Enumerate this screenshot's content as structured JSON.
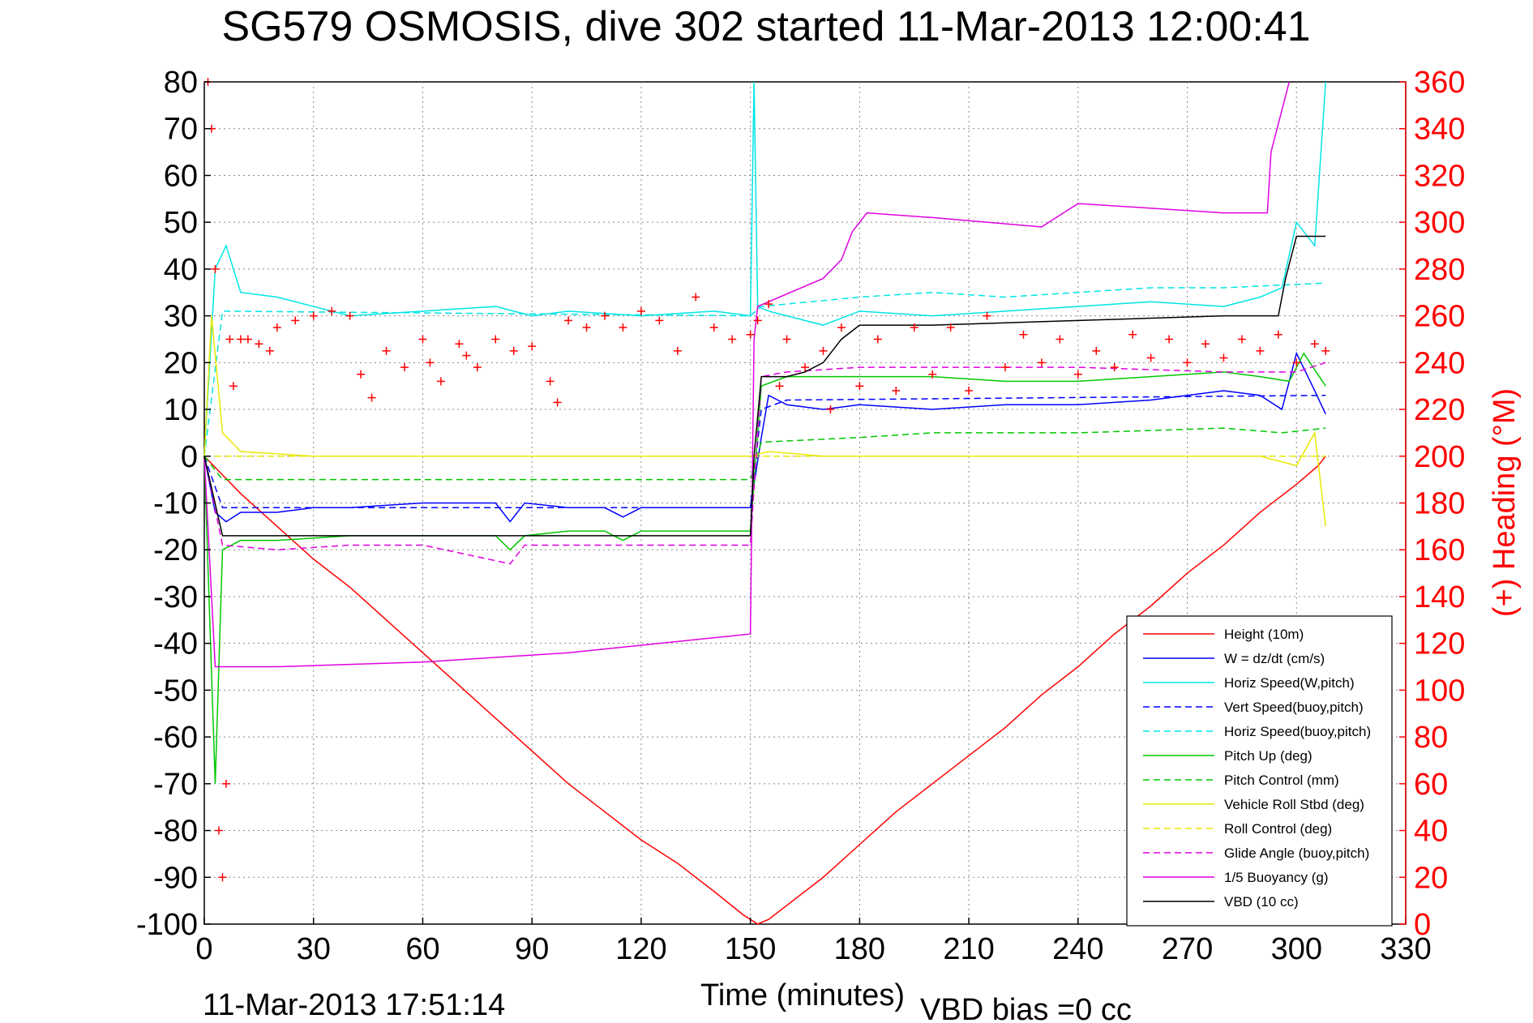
{
  "chart_data": {
    "type": "line",
    "title": "SG579 OSMOSIS, dive 302 started 11-Mar-2013 12:00:41",
    "xlabel": "Time (minutes)",
    "ylabel_right": "(+) Heading (°M)",
    "footer_left": "11-Mar-2013 17:51:14",
    "footer_right": "VBD bias =0 cc",
    "xlim": [
      0,
      330
    ],
    "ylim": [
      -100,
      80
    ],
    "y2lim": [
      0,
      360
    ],
    "xticks": [
      0,
      30,
      60,
      90,
      120,
      150,
      180,
      210,
      240,
      270,
      300,
      330
    ],
    "yticks": [
      80,
      70,
      60,
      50,
      40,
      30,
      20,
      10,
      0,
      -10,
      -20,
      -30,
      -40,
      -50,
      -60,
      -70,
      -80,
      -90,
      -100
    ],
    "y2ticks": [
      360,
      340,
      320,
      300,
      280,
      260,
      240,
      220,
      200,
      180,
      160,
      140,
      120,
      100,
      80,
      60,
      40,
      20,
      0
    ],
    "grid": true,
    "legend_position": "bottom-right",
    "colors": {
      "heading": "#ff0000",
      "right_axis": "#ff0000"
    },
    "series": [
      {
        "name": "Height (10m)",
        "color": "#ff0000",
        "style": "solid",
        "x": [
          0,
          10,
          20,
          30,
          40,
          50,
          60,
          70,
          80,
          90,
          100,
          110,
          120,
          130,
          140,
          148,
          152,
          155,
          160,
          170,
          180,
          190,
          200,
          210,
          220,
          230,
          240,
          250,
          260,
          270,
          280,
          290,
          300,
          306,
          308
        ],
        "y": [
          0,
          -8,
          -15,
          -22,
          -28,
          -35,
          -42,
          -49,
          -56,
          -63,
          -70,
          -76,
          -82,
          -87,
          -93,
          -98,
          -100,
          -99,
          -96,
          -90,
          -83,
          -76,
          -70,
          -64,
          -58,
          -51,
          -45,
          -38,
          -32,
          -25,
          -19,
          -12,
          -6,
          -2,
          0
        ]
      },
      {
        "name": "W = dz/dt (cm/s)",
        "color": "#0000ff",
        "style": "solid",
        "x": [
          0,
          3,
          6,
          10,
          20,
          30,
          40,
          60,
          80,
          84,
          88,
          100,
          110,
          115,
          120,
          140,
          150,
          153,
          155,
          160,
          170,
          180,
          200,
          220,
          240,
          260,
          280,
          290,
          296,
          300,
          305,
          308
        ],
        "y": [
          0,
          -12,
          -14,
          -12,
          -12,
          -11,
          -11,
          -10,
          -10,
          -14,
          -10,
          -11,
          -11,
          -13,
          -11,
          -11,
          -11,
          4,
          13,
          11,
          10,
          11,
          10,
          11,
          11,
          12,
          14,
          13,
          10,
          22,
          14,
          9
        ]
      },
      {
        "name": "Horiz Speed(W,pitch)",
        "color": "#00e5e5",
        "style": "solid",
        "x": [
          0,
          3,
          6,
          10,
          20,
          30,
          40,
          60,
          80,
          90,
          100,
          120,
          140,
          150,
          151,
          152,
          155,
          160,
          170,
          180,
          200,
          220,
          240,
          260,
          280,
          290,
          296,
          300,
          305,
          308
        ],
        "y": [
          0,
          40,
          45,
          35,
          34,
          32,
          30,
          31,
          32,
          30,
          31,
          30,
          31,
          30,
          80,
          32,
          31,
          30,
          28,
          31,
          30,
          31,
          32,
          33,
          32,
          34,
          36,
          50,
          45,
          80
        ]
      },
      {
        "name": "Vert Speed(buoy,pitch)",
        "color": "#0000ff",
        "style": "dashed",
        "x": [
          0,
          5,
          150,
          153,
          160,
          308
        ],
        "y": [
          0,
          -11,
          -11,
          10,
          12,
          13
        ]
      },
      {
        "name": "Horiz Speed(buoy,pitch)",
        "color": "#00e5e5",
        "style": "dashed",
        "x": [
          0,
          5,
          150,
          153,
          180,
          200,
          220,
          240,
          260,
          280,
          308
        ],
        "y": [
          0,
          31,
          30,
          32,
          34,
          35,
          34,
          35,
          36,
          36,
          37
        ]
      },
      {
        "name": "Pitch Up (deg)",
        "color": "#00c800",
        "style": "solid",
        "x": [
          0,
          3,
          5,
          10,
          20,
          40,
          60,
          80,
          84,
          88,
          100,
          110,
          115,
          120,
          140,
          150,
          153,
          160,
          180,
          200,
          220,
          240,
          260,
          280,
          290,
          298,
          302,
          308
        ],
        "y": [
          0,
          -70,
          -20,
          -18,
          -18,
          -17,
          -17,
          -17,
          -20,
          -17,
          -16,
          -16,
          -18,
          -16,
          -16,
          -16,
          15,
          17,
          17,
          17,
          16,
          16,
          17,
          18,
          17,
          16,
          22,
          15
        ]
      },
      {
        "name": "Pitch Control (mm)",
        "color": "#00c800",
        "style": "dashed",
        "x": [
          0,
          5,
          150,
          153,
          180,
          200,
          240,
          280,
          296,
          308
        ],
        "y": [
          0,
          -5,
          -5,
          3,
          4,
          5,
          5,
          6,
          5,
          6
        ]
      },
      {
        "name": "Vehicle Roll Stbd (deg)",
        "color": "#e8e800",
        "style": "solid",
        "x": [
          0,
          2,
          5,
          10,
          30,
          50,
          70,
          90,
          110,
          130,
          150,
          155,
          170,
          200,
          230,
          260,
          290,
          300,
          305,
          308
        ],
        "y": [
          0,
          30,
          5,
          1,
          0,
          0,
          0,
          0,
          0,
          0,
          0,
          1,
          0,
          0,
          0,
          0,
          0,
          -2,
          5,
          -15
        ]
      },
      {
        "name": "Roll Control (deg)",
        "color": "#e8e800",
        "style": "dashed",
        "x": [
          0,
          308
        ],
        "y": [
          0,
          0
        ]
      },
      {
        "name": "Glide Angle (buoy,pitch)",
        "color": "#e000e0",
        "style": "dashed",
        "x": [
          0,
          5,
          20,
          40,
          60,
          84,
          88,
          100,
          150,
          153,
          160,
          180,
          200,
          240,
          280,
          300,
          308
        ],
        "y": [
          0,
          -19,
          -20,
          -19,
          -19,
          -23,
          -19,
          -19,
          -19,
          17,
          18,
          19,
          19,
          19,
          18,
          18,
          20
        ]
      },
      {
        "name": "1/5 Buoyancy (g)",
        "color": "#e000e0",
        "style": "solid",
        "x": [
          0,
          3,
          20,
          60,
          100,
          150,
          151,
          152,
          170,
          175,
          178,
          182,
          200,
          230,
          232,
          240,
          260,
          280,
          292,
          293,
          298
        ],
        "y": [
          0,
          -45,
          -45,
          -44,
          -42,
          -38,
          25,
          32,
          38,
          42,
          48,
          52,
          51,
          49,
          50,
          54,
          53,
          52,
          52,
          65,
          80
        ]
      },
      {
        "name": "VBD (10 cc)",
        "color": "#000000",
        "style": "solid",
        "x": [
          0,
          5,
          150,
          151,
          153,
          160,
          165,
          170,
          172,
          175,
          180,
          200,
          240,
          280,
          295,
          297,
          300,
          308
        ],
        "y": [
          0,
          -17,
          -17,
          0,
          17,
          17,
          18,
          20,
          22,
          25,
          28,
          28,
          29,
          30,
          30,
          38,
          47,
          47
        ]
      },
      {
        "name": "",
        "axis": "right",
        "color": "#ff0000",
        "marker": "+",
        "x": [
          1,
          2,
          3,
          4,
          5,
          6,
          7,
          8,
          10,
          12,
          15,
          18,
          20,
          25,
          30,
          35,
          40,
          43,
          46,
          50,
          55,
          60,
          62,
          65,
          70,
          72,
          75,
          80,
          85,
          90,
          95,
          97,
          100,
          105,
          110,
          115,
          120,
          125,
          130,
          135,
          140,
          145,
          150,
          152,
          155,
          158,
          160,
          165,
          170,
          172,
          175,
          180,
          185,
          190,
          195,
          200,
          205,
          210,
          215,
          220,
          225,
          230,
          235,
          240,
          245,
          250,
          255,
          260,
          265,
          270,
          275,
          280,
          285,
          290,
          295,
          300,
          305,
          308
        ],
        "y": [
          360,
          340,
          280,
          40,
          20,
          60,
          250,
          230,
          250,
          250,
          248,
          245,
          255,
          258,
          260,
          262,
          260,
          235,
          225,
          245,
          238,
          250,
          240,
          232,
          248,
          243,
          238,
          250,
          245,
          247,
          232,
          223,
          258,
          255,
          260,
          255,
          262,
          258,
          245,
          268,
          255,
          250,
          252,
          258,
          265,
          230,
          250,
          238,
          245,
          220,
          255,
          230,
          250,
          228,
          255,
          235,
          255,
          228,
          260,
          238,
          252,
          240,
          250,
          235,
          245,
          238,
          252,
          242,
          250,
          240,
          248,
          242,
          250,
          245,
          252,
          240,
          248,
          245
        ]
      }
    ]
  }
}
